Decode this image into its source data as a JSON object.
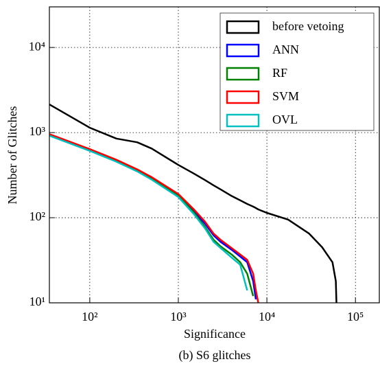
{
  "chart_data": {
    "type": "line",
    "caption": "(b) S6 glitches",
    "x_label": "Significance",
    "y_label": "Number of Glitches",
    "x_log": true,
    "y_log": true,
    "grid": true,
    "legend_position": "upper right",
    "xlim": [
      35,
      186000
    ],
    "ylim": [
      10,
      30000
    ],
    "xticks": [
      {
        "value": 100,
        "label": "10²"
      },
      {
        "value": 1000,
        "label": "10³"
      },
      {
        "value": 10000,
        "label": "10⁴"
      },
      {
        "value": 100000,
        "label": "10⁵"
      }
    ],
    "yticks": [
      {
        "value": 10,
        "label": "10¹"
      },
      {
        "value": 100,
        "label": "10²"
      },
      {
        "value": 1000,
        "label": "10³"
      },
      {
        "value": 10000,
        "label": "10⁴"
      }
    ],
    "x": [
      35,
      100,
      200,
      343,
      500,
      1000,
      1500,
      2000,
      2500,
      3000,
      4000,
      5000,
      6000,
      7000,
      7500,
      8000,
      10000,
      17400,
      30000,
      42000,
      55000,
      60000,
      61000
    ],
    "series": [
      {
        "name": "before vetoing",
        "color": "#000000",
        "values": [
          2140,
          1140,
          850,
          770,
          650,
          417,
          330,
          277,
          240,
          215,
          180,
          160,
          145,
          135,
          130,
          125,
          114,
          95,
          65,
          45,
          30,
          18,
          10
        ]
      },
      {
        "name": "ANN",
        "color": "#0000ff",
        "values": [
          950,
          630,
          470,
          360,
          290,
          185,
          120,
          85,
          62,
          52,
          42,
          35,
          30,
          18,
          11,
          null,
          null,
          null,
          null,
          null,
          null,
          null,
          null
        ]
      },
      {
        "name": "RF",
        "color": "#008000",
        "values": [
          940,
          620,
          460,
          355,
          285,
          180,
          115,
          78,
          55,
          46,
          37,
          30,
          22,
          12,
          null,
          null,
          null,
          null,
          null,
          null,
          null,
          null,
          null
        ]
      },
      {
        "name": "SVM",
        "color": "#ff0000",
        "values": [
          960,
          640,
          480,
          370,
          300,
          190,
          125,
          90,
          65,
          55,
          44,
          37,
          32,
          22,
          14,
          10,
          null,
          null,
          null,
          null,
          null,
          null,
          null
        ]
      },
      {
        "name": "OVL",
        "color": "#00bfbf",
        "values": [
          920,
          610,
          455,
          350,
          280,
          175,
          110,
          75,
          52,
          44,
          34,
          28,
          14,
          null,
          null,
          null,
          null,
          null,
          null,
          null,
          null,
          null,
          null
        ]
      }
    ]
  }
}
